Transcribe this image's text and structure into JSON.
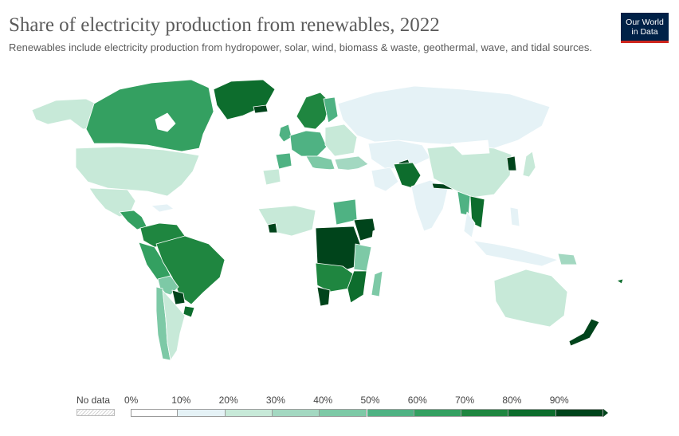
{
  "header": {
    "title": "Share of electricity production from renewables, 2022",
    "subtitle": "Renewables include electricity production from hydropower, solar, wind, biomass & waste, geothermal, wave, and tidal sources."
  },
  "logo": {
    "line1": "Our World",
    "line2": "in Data",
    "bg_color": "#002147",
    "accent_color": "#ce261e"
  },
  "legend": {
    "no_data_label": "No data",
    "bins": [
      {
        "label": "0%",
        "color": "#ffffff"
      },
      {
        "label": "10%",
        "color": "#e5f2f6"
      },
      {
        "label": "20%",
        "color": "#c7e9d8"
      },
      {
        "label": "30%",
        "color": "#a3d8c1"
      },
      {
        "label": "40%",
        "color": "#7dc9a6"
      },
      {
        "label": "50%",
        "color": "#4fb283"
      },
      {
        "label": "60%",
        "color": "#34a061"
      },
      {
        "label": "70%",
        "color": "#1f8640"
      },
      {
        "label": "80%",
        "color": "#0d6d2d"
      },
      {
        "label": "90%",
        "color": "#00441b"
      }
    ]
  }
}
